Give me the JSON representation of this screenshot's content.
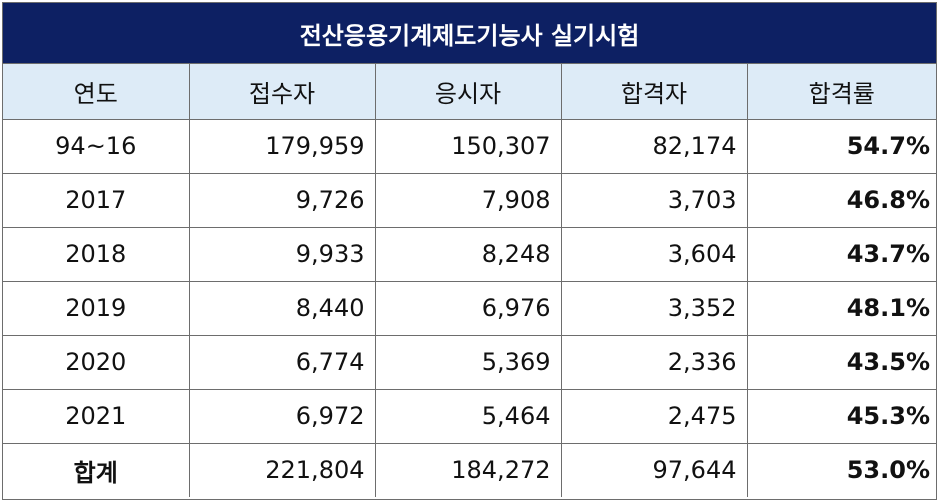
{
  "title": "전산응용기계제도기능사 실기시험",
  "columns": [
    "연도",
    "접수자",
    "응시자",
    "합격자",
    "합격률"
  ],
  "rows": [
    {
      "year": "94~16",
      "applicants": "179,959",
      "examinees": "150,307",
      "passers": "82,174",
      "rate": "54.7%"
    },
    {
      "year": "2017",
      "applicants": "9,726",
      "examinees": "7,908",
      "passers": "3,703",
      "rate": "46.8%"
    },
    {
      "year": "2018",
      "applicants": "9,933",
      "examinees": "8,248",
      "passers": "3,604",
      "rate": "43.7%"
    },
    {
      "year": "2019",
      "applicants": "8,440",
      "examinees": "6,976",
      "passers": "3,352",
      "rate": "48.1%"
    },
    {
      "year": "2020",
      "applicants": "6,774",
      "examinees": "5,369",
      "passers": "2,336",
      "rate": "43.5%"
    },
    {
      "year": "2021",
      "applicants": "6,972",
      "examinees": "5,464",
      "passers": "2,475",
      "rate": "45.3%"
    }
  ],
  "total": {
    "label": "합계",
    "applicants": "221,804",
    "examinees": "184,272",
    "passers": "97,644",
    "rate": "53.0%"
  },
  "colors": {
    "title_background": "#0d2063",
    "title_text": "#ffffff",
    "header_background": "#ddebf7",
    "border": "#6d6d6d"
  }
}
